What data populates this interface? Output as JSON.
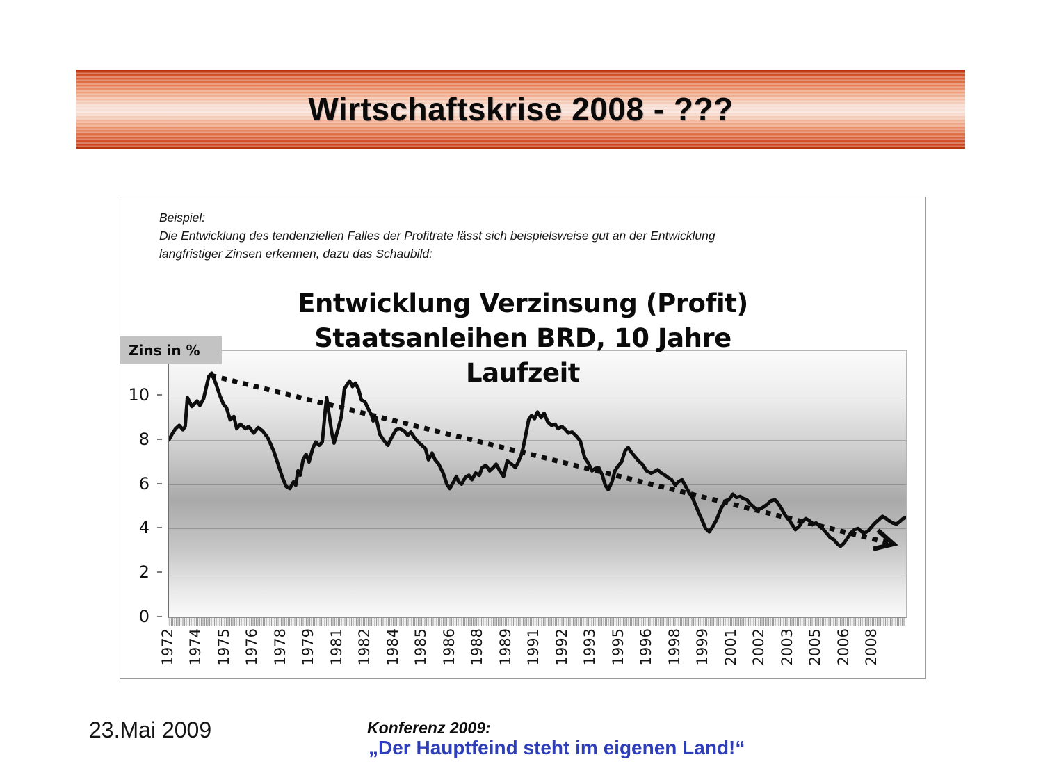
{
  "slide": {
    "banner_title": "Wirtschaftskrise 2008 - ???",
    "footer_date": "23.Mai 2009",
    "conference_label": "Konferenz 2009:",
    "conference_quote": "„Der Hauptfeind steht im eigenen Land!“",
    "colors": {
      "banner_red": "#c43a14",
      "quote_blue": "#2e3db8",
      "line_black": "#0d0d0d",
      "zins_box_gray": "#c3c3c3"
    }
  },
  "example_text": {
    "line1": "Beispiel:",
    "line2": "Die Entwicklung des tendenziellen Falles der Profitrate lässt sich beispielsweise gut an der Entwicklung",
    "line3": "langfristiger Zinsen erkennen, dazu das Schaubild:"
  },
  "chart_data": {
    "type": "line",
    "title_lines": [
      "Entwicklung Verzinsung (Profit)",
      "Staatsanleihen BRD, 10 Jahre",
      "Laufzeit"
    ],
    "y_axis_label": "Zins in %",
    "ylim": [
      0,
      12
    ],
    "y_ticks": [
      0,
      2,
      4,
      6,
      8,
      10
    ],
    "x_labels": [
      "1972",
      "1974",
      "1975",
      "1976",
      "1978",
      "1979",
      "1981",
      "1982",
      "1984",
      "1985",
      "1986",
      "1988",
      "1989",
      "1991",
      "1992",
      "1993",
      "1995",
      "1996",
      "1998",
      "1999",
      "2001",
      "2002",
      "2003",
      "2005",
      "2006",
      "2008"
    ],
    "x_label_spacing_px": 40.48,
    "grid": "horizontal-only",
    "series_points": [
      [
        0.0,
        8.0
      ],
      [
        0.005,
        8.3
      ],
      [
        0.009,
        8.5
      ],
      [
        0.014,
        8.65
      ],
      [
        0.019,
        8.45
      ],
      [
        0.022,
        8.6
      ],
      [
        0.025,
        9.9
      ],
      [
        0.031,
        9.5
      ],
      [
        0.038,
        9.75
      ],
      [
        0.042,
        9.55
      ],
      [
        0.047,
        9.85
      ],
      [
        0.054,
        10.85
      ],
      [
        0.058,
        11.0
      ],
      [
        0.064,
        10.5
      ],
      [
        0.069,
        10.0
      ],
      [
        0.074,
        9.6
      ],
      [
        0.078,
        9.45
      ],
      [
        0.083,
        8.9
      ],
      [
        0.088,
        9.05
      ],
      [
        0.092,
        8.5
      ],
      [
        0.097,
        8.7
      ],
      [
        0.104,
        8.5
      ],
      [
        0.108,
        8.6
      ],
      [
        0.115,
        8.3
      ],
      [
        0.121,
        8.55
      ],
      [
        0.127,
        8.4
      ],
      [
        0.134,
        8.1
      ],
      [
        0.142,
        7.5
      ],
      [
        0.148,
        6.9
      ],
      [
        0.154,
        6.3
      ],
      [
        0.159,
        5.9
      ],
      [
        0.164,
        5.8
      ],
      [
        0.169,
        6.1
      ],
      [
        0.172,
        5.95
      ],
      [
        0.175,
        6.6
      ],
      [
        0.178,
        6.4
      ],
      [
        0.182,
        7.1
      ],
      [
        0.186,
        7.35
      ],
      [
        0.19,
        7.0
      ],
      [
        0.195,
        7.6
      ],
      [
        0.199,
        7.9
      ],
      [
        0.204,
        7.75
      ],
      [
        0.208,
        7.9
      ],
      [
        0.212,
        9.3
      ],
      [
        0.214,
        9.9
      ],
      [
        0.217,
        9.2
      ],
      [
        0.221,
        8.3
      ],
      [
        0.224,
        7.85
      ],
      [
        0.227,
        8.2
      ],
      [
        0.234,
        9.05
      ],
      [
        0.238,
        10.3
      ],
      [
        0.242,
        10.5
      ],
      [
        0.245,
        10.65
      ],
      [
        0.249,
        10.4
      ],
      [
        0.253,
        10.55
      ],
      [
        0.257,
        10.3
      ],
      [
        0.261,
        9.8
      ],
      [
        0.266,
        9.7
      ],
      [
        0.271,
        9.35
      ],
      [
        0.275,
        9.1
      ],
      [
        0.277,
        8.85
      ],
      [
        0.281,
        9.0
      ],
      [
        0.286,
        8.25
      ],
      [
        0.292,
        7.95
      ],
      [
        0.297,
        7.75
      ],
      [
        0.302,
        8.1
      ],
      [
        0.308,
        8.45
      ],
      [
        0.313,
        8.5
      ],
      [
        0.319,
        8.4
      ],
      [
        0.324,
        8.2
      ],
      [
        0.328,
        8.35
      ],
      [
        0.333,
        8.1
      ],
      [
        0.338,
        7.9
      ],
      [
        0.343,
        7.75
      ],
      [
        0.348,
        7.6
      ],
      [
        0.352,
        7.1
      ],
      [
        0.357,
        7.4
      ],
      [
        0.361,
        7.1
      ],
      [
        0.366,
        6.9
      ],
      [
        0.372,
        6.5
      ],
      [
        0.377,
        6.0
      ],
      [
        0.381,
        5.8
      ],
      [
        0.386,
        6.1
      ],
      [
        0.39,
        6.35
      ],
      [
        0.393,
        6.1
      ],
      [
        0.397,
        6.0
      ],
      [
        0.402,
        6.3
      ],
      [
        0.407,
        6.4
      ],
      [
        0.411,
        6.2
      ],
      [
        0.416,
        6.5
      ],
      [
        0.421,
        6.4
      ],
      [
        0.425,
        6.75
      ],
      [
        0.43,
        6.85
      ],
      [
        0.435,
        6.6
      ],
      [
        0.44,
        6.75
      ],
      [
        0.444,
        6.9
      ],
      [
        0.449,
        6.6
      ],
      [
        0.454,
        6.35
      ],
      [
        0.459,
        7.05
      ],
      [
        0.465,
        6.9
      ],
      [
        0.47,
        6.75
      ],
      [
        0.474,
        7.0
      ],
      [
        0.479,
        7.4
      ],
      [
        0.484,
        8.2
      ],
      [
        0.488,
        8.9
      ],
      [
        0.492,
        9.1
      ],
      [
        0.496,
        8.95
      ],
      [
        0.5,
        9.25
      ],
      [
        0.505,
        9.0
      ],
      [
        0.509,
        9.2
      ],
      [
        0.514,
        8.8
      ],
      [
        0.519,
        8.65
      ],
      [
        0.524,
        8.7
      ],
      [
        0.528,
        8.5
      ],
      [
        0.533,
        8.6
      ],
      [
        0.538,
        8.45
      ],
      [
        0.542,
        8.3
      ],
      [
        0.547,
        8.35
      ],
      [
        0.553,
        8.15
      ],
      [
        0.558,
        7.95
      ],
      [
        0.564,
        7.2
      ],
      [
        0.569,
        6.95
      ],
      [
        0.574,
        6.6
      ],
      [
        0.578,
        6.7
      ],
      [
        0.583,
        6.75
      ],
      [
        0.588,
        6.4
      ],
      [
        0.592,
        5.95
      ],
      [
        0.596,
        5.75
      ],
      [
        0.601,
        6.1
      ],
      [
        0.605,
        6.6
      ],
      [
        0.609,
        6.8
      ],
      [
        0.614,
        7.0
      ],
      [
        0.619,
        7.5
      ],
      [
        0.623,
        7.65
      ],
      [
        0.627,
        7.45
      ],
      [
        0.632,
        7.25
      ],
      [
        0.637,
        7.05
      ],
      [
        0.642,
        6.9
      ],
      [
        0.648,
        6.6
      ],
      [
        0.654,
        6.5
      ],
      [
        0.658,
        6.55
      ],
      [
        0.663,
        6.65
      ],
      [
        0.668,
        6.5
      ],
      [
        0.673,
        6.4
      ],
      [
        0.677,
        6.3
      ],
      [
        0.682,
        6.2
      ],
      [
        0.687,
        5.95
      ],
      [
        0.691,
        6.1
      ],
      [
        0.696,
        6.2
      ],
      [
        0.701,
        5.9
      ],
      [
        0.706,
        5.6
      ],
      [
        0.71,
        5.4
      ],
      [
        0.714,
        5.1
      ],
      [
        0.719,
        4.7
      ],
      [
        0.723,
        4.4
      ],
      [
        0.728,
        4.0
      ],
      [
        0.733,
        3.85
      ],
      [
        0.738,
        4.1
      ],
      [
        0.743,
        4.4
      ],
      [
        0.749,
        4.9
      ],
      [
        0.755,
        5.25
      ],
      [
        0.76,
        5.3
      ],
      [
        0.765,
        5.55
      ],
      [
        0.77,
        5.4
      ],
      [
        0.775,
        5.45
      ],
      [
        0.779,
        5.35
      ],
      [
        0.784,
        5.3
      ],
      [
        0.789,
        5.1
      ],
      [
        0.794,
        4.95
      ],
      [
        0.798,
        4.85
      ],
      [
        0.803,
        4.9
      ],
      [
        0.808,
        5.0
      ],
      [
        0.812,
        5.1
      ],
      [
        0.817,
        5.25
      ],
      [
        0.822,
        5.3
      ],
      [
        0.826,
        5.15
      ],
      [
        0.831,
        4.9
      ],
      [
        0.836,
        4.6
      ],
      [
        0.841,
        4.4
      ],
      [
        0.845,
        4.2
      ],
      [
        0.85,
        3.95
      ],
      [
        0.855,
        4.1
      ],
      [
        0.859,
        4.3
      ],
      [
        0.864,
        4.45
      ],
      [
        0.869,
        4.35
      ],
      [
        0.874,
        4.2
      ],
      [
        0.878,
        4.25
      ],
      [
        0.883,
        4.1
      ],
      [
        0.888,
        3.95
      ],
      [
        0.892,
        3.8
      ],
      [
        0.897,
        3.6
      ],
      [
        0.902,
        3.5
      ],
      [
        0.907,
        3.3
      ],
      [
        0.911,
        3.2
      ],
      [
        0.916,
        3.35
      ],
      [
        0.921,
        3.6
      ],
      [
        0.925,
        3.8
      ],
      [
        0.93,
        3.95
      ],
      [
        0.935,
        4.0
      ],
      [
        0.94,
        3.85
      ],
      [
        0.944,
        3.8
      ],
      [
        0.949,
        3.9
      ],
      [
        0.954,
        4.1
      ],
      [
        0.958,
        4.25
      ],
      [
        0.963,
        4.4
      ],
      [
        0.968,
        4.55
      ],
      [
        0.973,
        4.45
      ],
      [
        0.977,
        4.35
      ],
      [
        0.982,
        4.25
      ],
      [
        0.987,
        4.2
      ],
      [
        0.991,
        4.3
      ],
      [
        0.996,
        4.45
      ],
      [
        1.0,
        4.5
      ]
    ],
    "trend": {
      "start": [
        0.057,
        10.9
      ],
      "end": [
        0.983,
        3.3
      ],
      "style": "dotted",
      "arrow": true
    }
  }
}
